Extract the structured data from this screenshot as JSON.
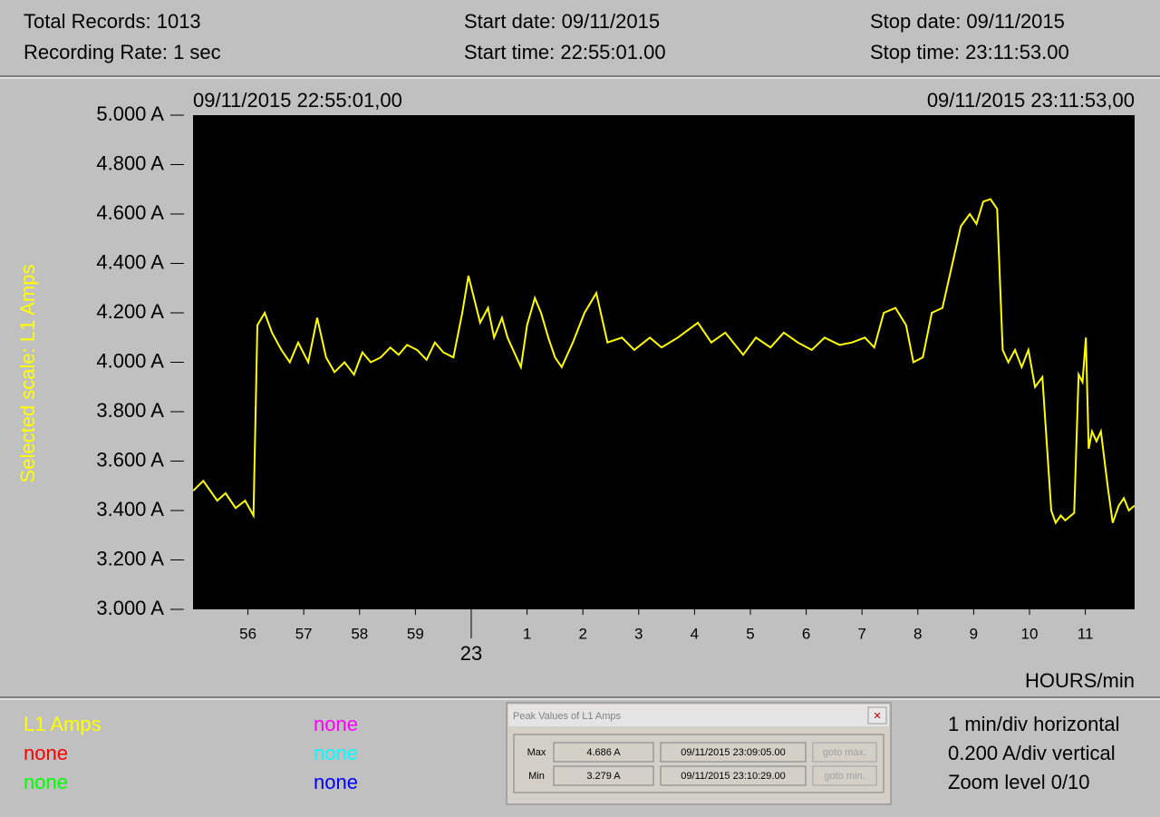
{
  "header": {
    "total_records": "Total Records: 1013",
    "recording_rate": "Recording Rate:  1 sec",
    "start_date": "Start date: 09/11/2015",
    "start_time": "Start time: 22:55:01.00",
    "stop_date": "Stop date: 09/11/2015",
    "stop_time": "Stop time: 23:11:53.00"
  },
  "chart_data": {
    "type": "line",
    "start_label": "09/11/2015 22:55:01,00",
    "end_label": "09/11/2015 23:11:53,00",
    "y_label": "Selected scale: L1 Amps",
    "x_label": "HOURS/min",
    "xlim": [
      55.0167,
      71.8833
    ],
    "ylim": [
      3.0,
      5.0
    ],
    "xticks": [
      56,
      57,
      58,
      59,
      {
        "value": 60,
        "label": "23"
      },
      {
        "value": 61,
        "label": "1"
      },
      {
        "value": 62,
        "label": "2"
      },
      {
        "value": 63,
        "label": "3"
      },
      {
        "value": 64,
        "label": "4"
      },
      {
        "value": 65,
        "label": "5"
      },
      {
        "value": 66,
        "label": "6"
      },
      {
        "value": 67,
        "label": "7"
      },
      {
        "value": 68,
        "label": "8"
      },
      {
        "value": 69,
        "label": "9"
      },
      {
        "value": 70,
        "label": "10"
      },
      {
        "value": 71,
        "label": "11"
      }
    ],
    "yticks": [
      {
        "value": 5.0,
        "label": "5.000 A"
      },
      {
        "value": 4.8,
        "label": "4.800 A"
      },
      {
        "value": 4.6,
        "label": "4.600 A"
      },
      {
        "value": 4.4,
        "label": "4.400 A"
      },
      {
        "value": 4.2,
        "label": "4.200 A"
      },
      {
        "value": 4.0,
        "label": "4.000 A"
      },
      {
        "value": 3.8,
        "label": "3.800 A"
      },
      {
        "value": 3.6,
        "label": "3.600 A"
      },
      {
        "value": 3.4,
        "label": "3.400 A"
      },
      {
        "value": 3.2,
        "label": "3.200 A"
      },
      {
        "value": 3.0,
        "label": "3.000 A"
      }
    ],
    "series": [
      {
        "name": "L1 Amps",
        "color": "#ffff00",
        "x": [
          55.02,
          55.2,
          55.45,
          55.6,
          55.78,
          55.95,
          56.1,
          56.17,
          56.3,
          56.43,
          56.6,
          56.75,
          56.9,
          57.08,
          57.24,
          57.4,
          57.55,
          57.73,
          57.9,
          58.05,
          58.2,
          58.38,
          58.55,
          58.7,
          58.85,
          59.03,
          59.2,
          59.35,
          59.5,
          59.68,
          59.84,
          59.95,
          60.16,
          60.3,
          60.41,
          60.55,
          60.65,
          60.89,
          61.0,
          61.14,
          61.25,
          61.38,
          61.5,
          61.62,
          61.82,
          62.03,
          62.24,
          62.44,
          62.7,
          62.92,
          63.2,
          63.41,
          63.7,
          64.06,
          64.3,
          64.55,
          64.87,
          65.1,
          65.36,
          65.6,
          65.85,
          66.1,
          66.33,
          66.6,
          66.82,
          67.05,
          67.22,
          67.39,
          67.6,
          67.79,
          67.92,
          68.09,
          68.25,
          68.44,
          68.57,
          68.77,
          68.93,
          69.05,
          69.17,
          69.3,
          69.42,
          69.52,
          69.62,
          69.74,
          69.86,
          69.98,
          70.1,
          70.23,
          70.39,
          70.47,
          70.56,
          70.64,
          70.8,
          70.88,
          70.95,
          71.01,
          71.06,
          71.12,
          71.2,
          71.28,
          71.4,
          71.49,
          71.6,
          71.69,
          71.78,
          71.88
        ],
        "values": [
          3.48,
          3.52,
          3.44,
          3.47,
          3.41,
          3.44,
          3.38,
          4.15,
          4.2,
          4.12,
          4.05,
          4.0,
          4.08,
          4.0,
          4.18,
          4.02,
          3.96,
          4.0,
          3.95,
          4.04,
          4.0,
          4.02,
          4.06,
          4.03,
          4.07,
          4.05,
          4.01,
          4.08,
          4.04,
          4.02,
          4.2,
          4.35,
          4.16,
          4.22,
          4.1,
          4.18,
          4.1,
          3.98,
          4.15,
          4.26,
          4.2,
          4.1,
          4.02,
          3.98,
          4.08,
          4.2,
          4.28,
          4.08,
          4.1,
          4.05,
          4.1,
          4.06,
          4.1,
          4.16,
          4.08,
          4.12,
          4.03,
          4.1,
          4.06,
          4.12,
          4.08,
          4.05,
          4.1,
          4.07,
          4.08,
          4.1,
          4.06,
          4.2,
          4.22,
          4.15,
          4.0,
          4.02,
          4.2,
          4.22,
          4.35,
          4.55,
          4.6,
          4.56,
          4.65,
          4.66,
          4.62,
          4.05,
          4.0,
          4.05,
          3.98,
          4.05,
          3.9,
          3.94,
          3.4,
          3.35,
          3.38,
          3.36,
          3.39,
          3.95,
          3.92,
          4.1,
          3.65,
          3.72,
          3.68,
          3.72,
          3.5,
          3.35,
          3.42,
          3.45,
          3.4,
          3.42
        ]
      }
    ]
  },
  "legend": [
    {
      "name": "L1 Amps",
      "color": "#ffff00"
    },
    {
      "name": "none",
      "color": "#ff0000"
    },
    {
      "name": "none",
      "color": "#00ff00"
    },
    {
      "name": "none",
      "color": "#ff00ff"
    },
    {
      "name": "none",
      "color": "#00ffff"
    },
    {
      "name": "none",
      "color": "#0000ff"
    }
  ],
  "peak_dialog": {
    "title": "Peak Values of L1 Amps",
    "rows": [
      {
        "label": "Max",
        "value": "4.686 A",
        "time": "09/11/2015  23:09:05.00",
        "button": "goto max."
      },
      {
        "label": "Min",
        "value": "3.279 A",
        "time": "09/11/2015  23:10:29.00",
        "button": "goto min."
      }
    ]
  },
  "info": [
    "1 min/div horizontal",
    "0.200 A/div vertical",
    "Zoom level 0/10"
  ]
}
